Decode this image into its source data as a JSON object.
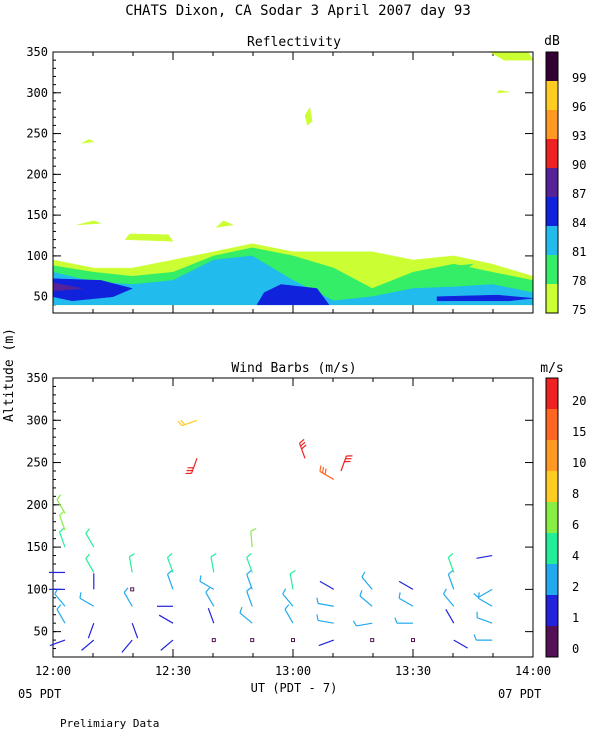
{
  "title": "CHATS Dixon, CA  Sodar    3 April 2007   day  93",
  "ylabel": "Altitude (m)",
  "xlabel": "UT  (PDT - 7)",
  "left_date": "05 PDT",
  "right_date": "07 PDT",
  "footnote": "Prelimiary Data",
  "colors": {
    "dB": [
      "#ccff33",
      "#33ee66",
      "#22bbee",
      "#1122dd",
      "#552299",
      "#ee2222",
      "#ff9922",
      "#ffcc22",
      "#330033"
    ],
    "wind": [
      "#551155",
      "#2222dd",
      "#22aaee",
      "#22ee99",
      "#88ee44",
      "#ffcc22",
      "#ff9922",
      "#ff6622",
      "#ee2222"
    ]
  },
  "chart_data": [
    {
      "type": "heatmap",
      "title": "Reflectivity",
      "x_ticks": [
        "12:00",
        "12:30",
        "13:00",
        "13:30",
        "14:00"
      ],
      "xlim_hours": [
        12,
        14
      ],
      "ylim": [
        30,
        350
      ],
      "y_ticks": [
        50,
        100,
        150,
        200,
        250,
        300,
        350
      ],
      "colorbar": {
        "unit": "dB",
        "labels": [
          "75",
          "78",
          "81",
          "84",
          "87",
          "90",
          "93",
          "96",
          "99"
        ]
      },
      "shapes": [
        {
          "level": 75,
          "points": [
            [
              12.0,
              40
            ],
            [
              14.0,
              40
            ],
            [
              14.0,
              75
            ],
            [
              13.83,
              90
            ],
            [
              13.67,
              100
            ],
            [
              13.5,
              95
            ],
            [
              13.33,
              105
            ],
            [
              13.17,
              105
            ],
            [
              13.0,
              105
            ],
            [
              12.83,
              115
            ],
            [
              12.67,
              105
            ],
            [
              12.5,
              95
            ],
            [
              12.33,
              85
            ],
            [
              12.17,
              85
            ],
            [
              12.0,
              95
            ]
          ]
        },
        {
          "level": 78,
          "points": [
            [
              12.0,
              40
            ],
            [
              14.0,
              40
            ],
            [
              14.0,
              70
            ],
            [
              13.83,
              80
            ],
            [
              13.67,
              90
            ],
            [
              13.5,
              80
            ],
            [
              13.33,
              60
            ],
            [
              13.17,
              85
            ],
            [
              13.0,
              100
            ],
            [
              12.83,
              110
            ],
            [
              12.67,
              100
            ],
            [
              12.5,
              80
            ],
            [
              12.33,
              75
            ],
            [
              12.17,
              80
            ],
            [
              12.0,
              88
            ]
          ]
        },
        {
          "level": 81,
          "points": [
            [
              12.0,
              40
            ],
            [
              14.0,
              40
            ],
            [
              14.0,
              55
            ],
            [
              13.83,
              65
            ],
            [
              13.67,
              62
            ],
            [
              13.5,
              60
            ],
            [
              13.33,
              50
            ],
            [
              13.17,
              45
            ],
            [
              13.0,
              70
            ],
            [
              12.83,
              100
            ],
            [
              12.67,
              95
            ],
            [
              12.5,
              70
            ],
            [
              12.33,
              65
            ],
            [
              12.17,
              68
            ],
            [
              12.0,
              80
            ]
          ]
        },
        {
          "level": 84,
          "points": [
            [
              12.85,
              40
            ],
            [
              13.15,
              40
            ],
            [
              13.1,
              60
            ],
            [
              12.95,
              65
            ],
            [
              12.88,
              55
            ]
          ]
        },
        {
          "level": 84,
          "points": [
            [
              12.0,
              50
            ],
            [
              12.08,
              45
            ],
            [
              12.25,
              50
            ],
            [
              12.33,
              60
            ],
            [
              12.2,
              70
            ],
            [
              12.0,
              72
            ]
          ]
        },
        {
          "level": 84,
          "points": [
            [
              13.6,
              45
            ],
            [
              13.9,
              45
            ],
            [
              14.0,
              48
            ],
            [
              13.85,
              52
            ],
            [
              13.6,
              50
            ]
          ]
        },
        {
          "level": 87,
          "points": [
            [
              12.0,
              57
            ],
            [
              12.12,
              60
            ],
            [
              12.0,
              67
            ]
          ]
        },
        {
          "level": 78,
          "points": [
            [
              13.5,
              75
            ],
            [
              13.6,
              85
            ],
            [
              13.75,
              90
            ],
            [
              13.65,
              70
            ]
          ]
        },
        {
          "level": 75,
          "points": [
            [
              13.85,
              345
            ],
            [
              13.88,
              340
            ],
            [
              14.0,
              340
            ],
            [
              13.98,
              350
            ],
            [
              13.82,
              350
            ]
          ]
        },
        {
          "level": 75,
          "points": [
            [
              13.85,
              300
            ],
            [
              13.9,
              301
            ],
            [
              13.86,
              303
            ]
          ]
        },
        {
          "level": 75,
          "points": [
            [
              13.05,
              272
            ],
            [
              13.06,
              260
            ],
            [
              13.08,
              265
            ],
            [
              13.07,
              282
            ]
          ]
        },
        {
          "level": 75,
          "points": [
            [
              12.12,
              238
            ],
            [
              12.17,
              240
            ],
            [
              12.15,
              243
            ]
          ]
        },
        {
          "level": 75,
          "points": [
            [
              12.1,
              138
            ],
            [
              12.2,
              140
            ],
            [
              12.17,
              143
            ]
          ]
        },
        {
          "level": 75,
          "points": [
            [
              12.3,
              120
            ],
            [
              12.5,
              118
            ],
            [
              12.48,
              126
            ],
            [
              12.32,
              127
            ]
          ]
        },
        {
          "level": 75,
          "points": [
            [
              12.68,
              135
            ],
            [
              12.75,
              138
            ],
            [
              12.71,
              143
            ]
          ]
        }
      ]
    },
    {
      "type": "scatter",
      "title": "Wind Barbs (m/s)",
      "x_ticks": [
        "12:00",
        "12:30",
        "13:00",
        "13:30",
        "14:00"
      ],
      "xlim_hours": [
        12,
        14
      ],
      "ylim": [
        20,
        350
      ],
      "y_ticks": [
        50,
        100,
        150,
        200,
        250,
        300,
        350
      ],
      "colorbar": {
        "unit": "m/s",
        "labels": [
          "0",
          "1",
          "2",
          "4",
          "6",
          "8",
          "10",
          "15",
          "20"
        ]
      },
      "barbs": [
        {
          "t": 12.05,
          "z": 40,
          "ws": 1,
          "dir": 250
        },
        {
          "t": 12.17,
          "z": 40,
          "ws": 1,
          "dir": 230
        },
        {
          "t": 12.33,
          "z": 40,
          "ws": 1,
          "dir": 220
        },
        {
          "t": 12.5,
          "z": 40,
          "ws": 1,
          "dir": 230
        },
        {
          "t": 12.67,
          "z": 40,
          "ws": 0.2,
          "dir": 0
        },
        {
          "t": 12.83,
          "z": 40,
          "ws": 0.2,
          "dir": 0
        },
        {
          "t": 13.0,
          "z": 40,
          "ws": 0.2,
          "dir": 0
        },
        {
          "t": 13.17,
          "z": 40,
          "ws": 1,
          "dir": 250
        },
        {
          "t": 13.33,
          "z": 40,
          "ws": 0.2,
          "dir": 0
        },
        {
          "t": 13.5,
          "z": 40,
          "ws": 0.2,
          "dir": 0
        },
        {
          "t": 13.67,
          "z": 40,
          "ws": 1,
          "dir": 120
        },
        {
          "t": 13.83,
          "z": 40,
          "ws": 2,
          "dir": 270
        },
        {
          "t": 12.05,
          "z": 60,
          "ws": 2,
          "dir": 330
        },
        {
          "t": 12.17,
          "z": 60,
          "ws": 1,
          "dir": 200
        },
        {
          "t": 12.33,
          "z": 60,
          "ws": 1,
          "dir": 160
        },
        {
          "t": 12.5,
          "z": 60,
          "ws": 1,
          "dir": 300
        },
        {
          "t": 12.67,
          "z": 60,
          "ws": 1,
          "dir": 340
        },
        {
          "t": 12.83,
          "z": 60,
          "ws": 2,
          "dir": 310
        },
        {
          "t": 13.0,
          "z": 60,
          "ws": 2,
          "dir": 330
        },
        {
          "t": 13.17,
          "z": 60,
          "ws": 2,
          "dir": 280
        },
        {
          "t": 13.33,
          "z": 60,
          "ws": 2,
          "dir": 260
        },
        {
          "t": 13.5,
          "z": 60,
          "ws": 2,
          "dir": 270
        },
        {
          "t": 13.67,
          "z": 60,
          "ws": 1,
          "dir": 330
        },
        {
          "t": 13.83,
          "z": 60,
          "ws": 2,
          "dir": 290
        },
        {
          "t": 12.05,
          "z": 80,
          "ws": 2,
          "dir": 320
        },
        {
          "t": 12.17,
          "z": 80,
          "ws": 2,
          "dir": 300
        },
        {
          "t": 12.33,
          "z": 80,
          "ws": 2,
          "dir": 330
        },
        {
          "t": 12.5,
          "z": 80,
          "ws": 1,
          "dir": 270
        },
        {
          "t": 12.67,
          "z": 80,
          "ws": 2,
          "dir": 330
        },
        {
          "t": 12.83,
          "z": 80,
          "ws": 2,
          "dir": 340
        },
        {
          "t": 13.0,
          "z": 80,
          "ws": 2,
          "dir": 320
        },
        {
          "t": 13.17,
          "z": 80,
          "ws": 2,
          "dir": 280
        },
        {
          "t": 13.33,
          "z": 80,
          "ws": 2,
          "dir": 310
        },
        {
          "t": 13.5,
          "z": 80,
          "ws": 2,
          "dir": 300
        },
        {
          "t": 13.67,
          "z": 80,
          "ws": 2,
          "dir": 320
        },
        {
          "t": 13.83,
          "z": 80,
          "ws": 2,
          "dir": 300
        },
        {
          "t": 12.05,
          "z": 100,
          "ws": 1,
          "dir": 270
        },
        {
          "t": 12.17,
          "z": 100,
          "ws": 1,
          "dir": 0
        },
        {
          "t": 12.33,
          "z": 100,
          "ws": 0.2,
          "dir": 0
        },
        {
          "t": 12.5,
          "z": 100,
          "ws": 2,
          "dir": 340
        },
        {
          "t": 12.67,
          "z": 100,
          "ws": 2,
          "dir": 300
        },
        {
          "t": 12.83,
          "z": 100,
          "ws": 2,
          "dir": 340
        },
        {
          "t": 13.0,
          "z": 100,
          "ws": 4,
          "dir": 350
        },
        {
          "t": 13.17,
          "z": 100,
          "ws": 1,
          "dir": 300
        },
        {
          "t": 13.33,
          "z": 100,
          "ws": 2,
          "dir": 320
        },
        {
          "t": 13.5,
          "z": 100,
          "ws": 1,
          "dir": 300
        },
        {
          "t": 13.67,
          "z": 100,
          "ws": 2,
          "dir": 340
        },
        {
          "t": 13.83,
          "z": 100,
          "ws": 2,
          "dir": 240
        },
        {
          "t": 12.05,
          "z": 120,
          "ws": 1,
          "dir": 270
        },
        {
          "t": 12.17,
          "z": 120,
          "ws": 4,
          "dir": 330
        },
        {
          "t": 12.33,
          "z": 120,
          "ws": 4,
          "dir": 350
        },
        {
          "t": 12.5,
          "z": 120,
          "ws": 4,
          "dir": 340
        },
        {
          "t": 12.67,
          "z": 120,
          "ws": 4,
          "dir": 350
        },
        {
          "t": 12.83,
          "z": 120,
          "ws": 4,
          "dir": 340
        },
        {
          "t": 13.67,
          "z": 120,
          "ws": 4,
          "dir": 340
        },
        {
          "t": 12.05,
          "z": 150,
          "ws": 4,
          "dir": 340
        },
        {
          "t": 12.17,
          "z": 150,
          "ws": 4,
          "dir": 330
        },
        {
          "t": 12.83,
          "z": 150,
          "ws": 6,
          "dir": 355
        },
        {
          "t": 13.83,
          "z": 140,
          "ws": 1,
          "dir": 260
        },
        {
          "t": 12.05,
          "z": 170,
          "ws": 6,
          "dir": 340
        },
        {
          "t": 12.05,
          "z": 190,
          "ws": 6,
          "dir": 330
        },
        {
          "t": 12.6,
          "z": 300,
          "ws": 8,
          "dir": 250
        },
        {
          "t": 12.6,
          "z": 255,
          "ws": 20,
          "dir": 200
        },
        {
          "t": 13.05,
          "z": 255,
          "ws": 20,
          "dir": 340
        },
        {
          "t": 13.17,
          "z": 230,
          "ws": 15,
          "dir": 300
        },
        {
          "t": 13.2,
          "z": 240,
          "ws": 20,
          "dir": 20
        }
      ]
    }
  ]
}
